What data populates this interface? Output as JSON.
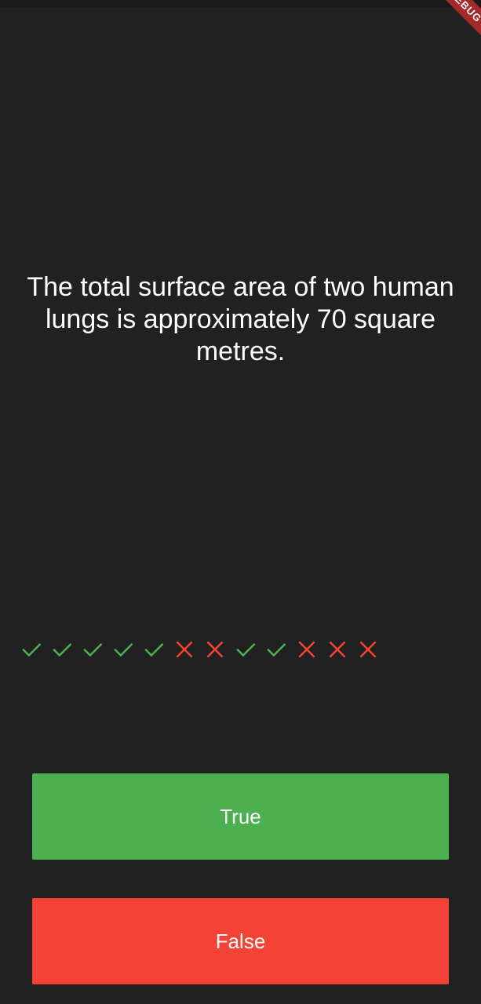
{
  "debug_banner": {
    "label": "DEBUG"
  },
  "quiz": {
    "question": "The total surface area of two human lungs is approximately 70 square metres."
  },
  "score_keeper": {
    "icons": [
      "check-icon",
      "check-icon",
      "check-icon",
      "check-icon",
      "check-icon",
      "close-icon",
      "close-icon",
      "check-icon",
      "check-icon",
      "close-icon",
      "close-icon",
      "close-icon"
    ],
    "colors": {
      "check-icon": "#4caf50",
      "close-icon": "#f44336"
    }
  },
  "buttons": {
    "true_label": "True",
    "false_label": "False",
    "true_color": "#4caf50",
    "false_color": "#f44336"
  }
}
